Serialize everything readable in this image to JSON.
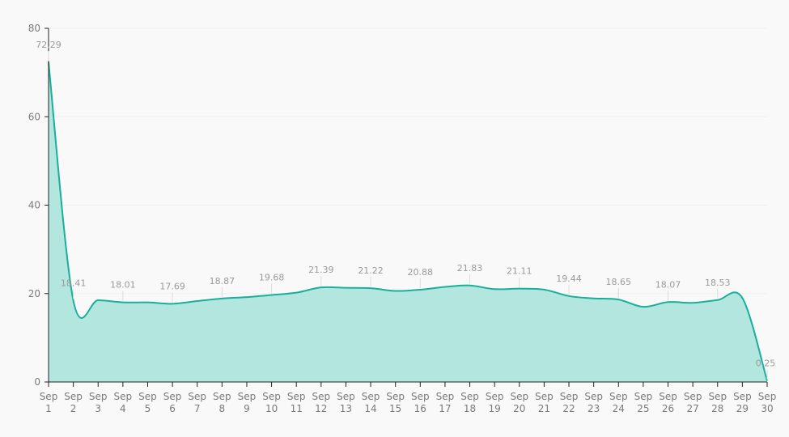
{
  "chart_data": {
    "type": "area",
    "title": "",
    "xlabel": "",
    "ylabel": "",
    "x": [
      "Sep 1",
      "Sep 2",
      "Sep 3",
      "Sep 4",
      "Sep 5",
      "Sep 6",
      "Sep 7",
      "Sep 8",
      "Sep 9",
      "Sep 10",
      "Sep 11",
      "Sep 12",
      "Sep 13",
      "Sep 14",
      "Sep 15",
      "Sep 16",
      "Sep 17",
      "Sep 18",
      "Sep 19",
      "Sep 20",
      "Sep 21",
      "Sep 22",
      "Sep 23",
      "Sep 24",
      "Sep 25",
      "Sep 26",
      "Sep 27",
      "Sep 28",
      "Sep 29",
      "Sep 30"
    ],
    "series": [
      {
        "values": [
          72.29,
          18.41,
          18.5,
          18.01,
          18.0,
          17.69,
          18.3,
          18.87,
          19.2,
          19.68,
          20.2,
          21.39,
          21.3,
          21.22,
          20.6,
          20.88,
          21.5,
          21.83,
          21.0,
          21.11,
          20.9,
          19.44,
          18.9,
          18.65,
          17.0,
          18.07,
          17.9,
          18.53,
          19.0,
          0.25
        ],
        "color": "#1aaf9a"
      }
    ],
    "point_labels": {
      "0": "72.29",
      "1": "18.41",
      "3": "18.01",
      "5": "17.69",
      "7": "18.87",
      "9": "19.68",
      "11": "21.39",
      "13": "21.22",
      "15": "20.88",
      "17": "21.83",
      "19": "21.11",
      "21": "19.44",
      "23": "18.65",
      "25": "18.07",
      "27": "18.53",
      "29": "0.25"
    },
    "y_ticks": [
      "0",
      "20",
      "40",
      "60",
      "80"
    ],
    "ylim": [
      0,
      80
    ],
    "grid": true,
    "legend": "none",
    "line_color": "#1aaf9a",
    "fill_color": "#b3e6df"
  }
}
